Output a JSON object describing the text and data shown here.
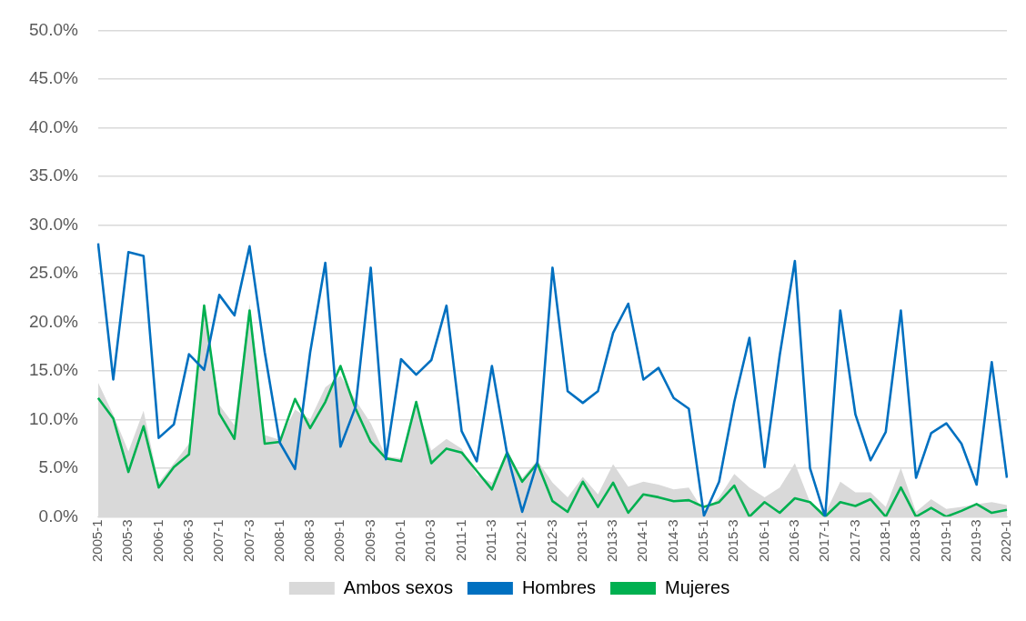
{
  "chart_data": {
    "type": "line",
    "categories": [
      "2005-1",
      null,
      "2005-3",
      null,
      "2006-1",
      null,
      "2006-3",
      null,
      "2007-1",
      null,
      "2007-3",
      null,
      "2008-1",
      null,
      "2008-3",
      null,
      "2009-1",
      null,
      "2009-3",
      null,
      "2010-1",
      null,
      "2010-3",
      null,
      "2011-1",
      null,
      "2011-3",
      null,
      "2012-1",
      null,
      "2012-3",
      null,
      "2013-1",
      null,
      "2013-3",
      null,
      "2014-1",
      null,
      "2014-3",
      null,
      "2015-1",
      null,
      "2015-3",
      null,
      "2016-1",
      null,
      "2016-3",
      null,
      "2017-1",
      null,
      "2017-3",
      null,
      "2018-1",
      null,
      "2018-3",
      null,
      "2019-1",
      null,
      "2019-3",
      null,
      "2020-1"
    ],
    "series": [
      {
        "name": "Ambos sexos",
        "type": "area",
        "color": "#d9d9d9",
        "values": [
          13.8,
          10.5,
          6.7,
          10.9,
          3.5,
          5.5,
          7.5,
          21.7,
          11.5,
          9.4,
          21.9,
          8.4,
          7.9,
          11.0,
          10.0,
          13.3,
          14.5,
          12.0,
          9.6,
          6.2,
          6.0,
          11.5,
          6.8,
          8.0,
          7.0,
          4.3,
          3.5,
          6.8,
          4.0,
          5.8,
          3.5,
          2.0,
          4.1,
          2.3,
          5.4,
          3.1,
          3.6,
          3.3,
          2.8,
          3.0,
          0.5,
          2.0,
          4.4,
          3.0,
          2.0,
          3.0,
          5.5,
          1.5,
          0.3,
          3.6,
          2.5,
          2.5,
          1.0,
          5.0,
          0.5,
          1.8,
          0.8,
          1.0,
          1.3,
          1.5,
          1.2
        ]
      },
      {
        "name": "Hombres",
        "type": "line",
        "color": "#0070c0",
        "values": [
          28.1,
          14.1,
          27.2,
          26.8,
          8.1,
          9.5,
          16.7,
          15.1,
          22.8,
          20.7,
          27.8,
          16.9,
          7.6,
          4.9,
          16.9,
          26.1,
          7.2,
          11.3,
          25.6,
          5.9,
          16.2,
          14.6,
          16.1,
          21.7,
          8.8,
          5.7,
          15.5,
          6.5,
          0.5,
          5.6,
          25.6,
          12.9,
          11.7,
          12.9,
          18.9,
          21.9,
          14.1,
          15.3,
          12.2,
          11.1,
          0.1,
          3.6,
          11.8,
          18.4,
          5.1,
          16.6,
          26.3,
          5.0,
          0.0,
          21.2,
          10.5,
          5.8,
          8.7,
          21.2,
          4.0,
          8.6,
          9.6,
          7.5,
          3.3,
          15.9,
          4.0
        ]
      },
      {
        "name": "Mujeres",
        "type": "line",
        "color": "#00b050",
        "values": [
          12.2,
          10.1,
          4.6,
          9.3,
          3.0,
          5.1,
          6.4,
          21.7,
          10.6,
          8.0,
          21.2,
          7.5,
          7.7,
          12.1,
          9.1,
          11.8,
          15.5,
          11.1,
          7.7,
          6.0,
          5.7,
          11.8,
          5.5,
          7.0,
          6.6,
          4.7,
          2.8,
          6.6,
          3.6,
          5.5,
          1.6,
          0.5,
          3.6,
          1.0,
          3.5,
          0.4,
          2.3,
          2.0,
          1.6,
          1.7,
          1.0,
          1.5,
          3.2,
          0.0,
          1.5,
          0.4,
          1.9,
          1.5,
          0.0,
          1.5,
          1.1,
          1.8,
          0.0,
          3.0,
          0.0,
          0.9,
          0.0,
          0.6,
          1.3,
          0.4,
          0.7
        ]
      }
    ],
    "ylim": [
      0,
      50
    ],
    "yticks": [
      {
        "value": 0,
        "label": "0.0%"
      },
      {
        "value": 5,
        "label": "5.0%"
      },
      {
        "value": 10,
        "label": "10.0%"
      },
      {
        "value": 15,
        "label": "15.0%"
      },
      {
        "value": 20,
        "label": "20.0%"
      },
      {
        "value": 25,
        "label": "25.0%"
      },
      {
        "value": 30,
        "label": "30.0%"
      },
      {
        "value": 35,
        "label": "35.0%"
      },
      {
        "value": 40,
        "label": "40.0%"
      },
      {
        "value": 45,
        "label": "45.0%"
      },
      {
        "value": 50,
        "label": "50.0%"
      }
    ],
    "grid": "y",
    "legend": "bottom",
    "marker": "none",
    "line_style": "solid"
  }
}
